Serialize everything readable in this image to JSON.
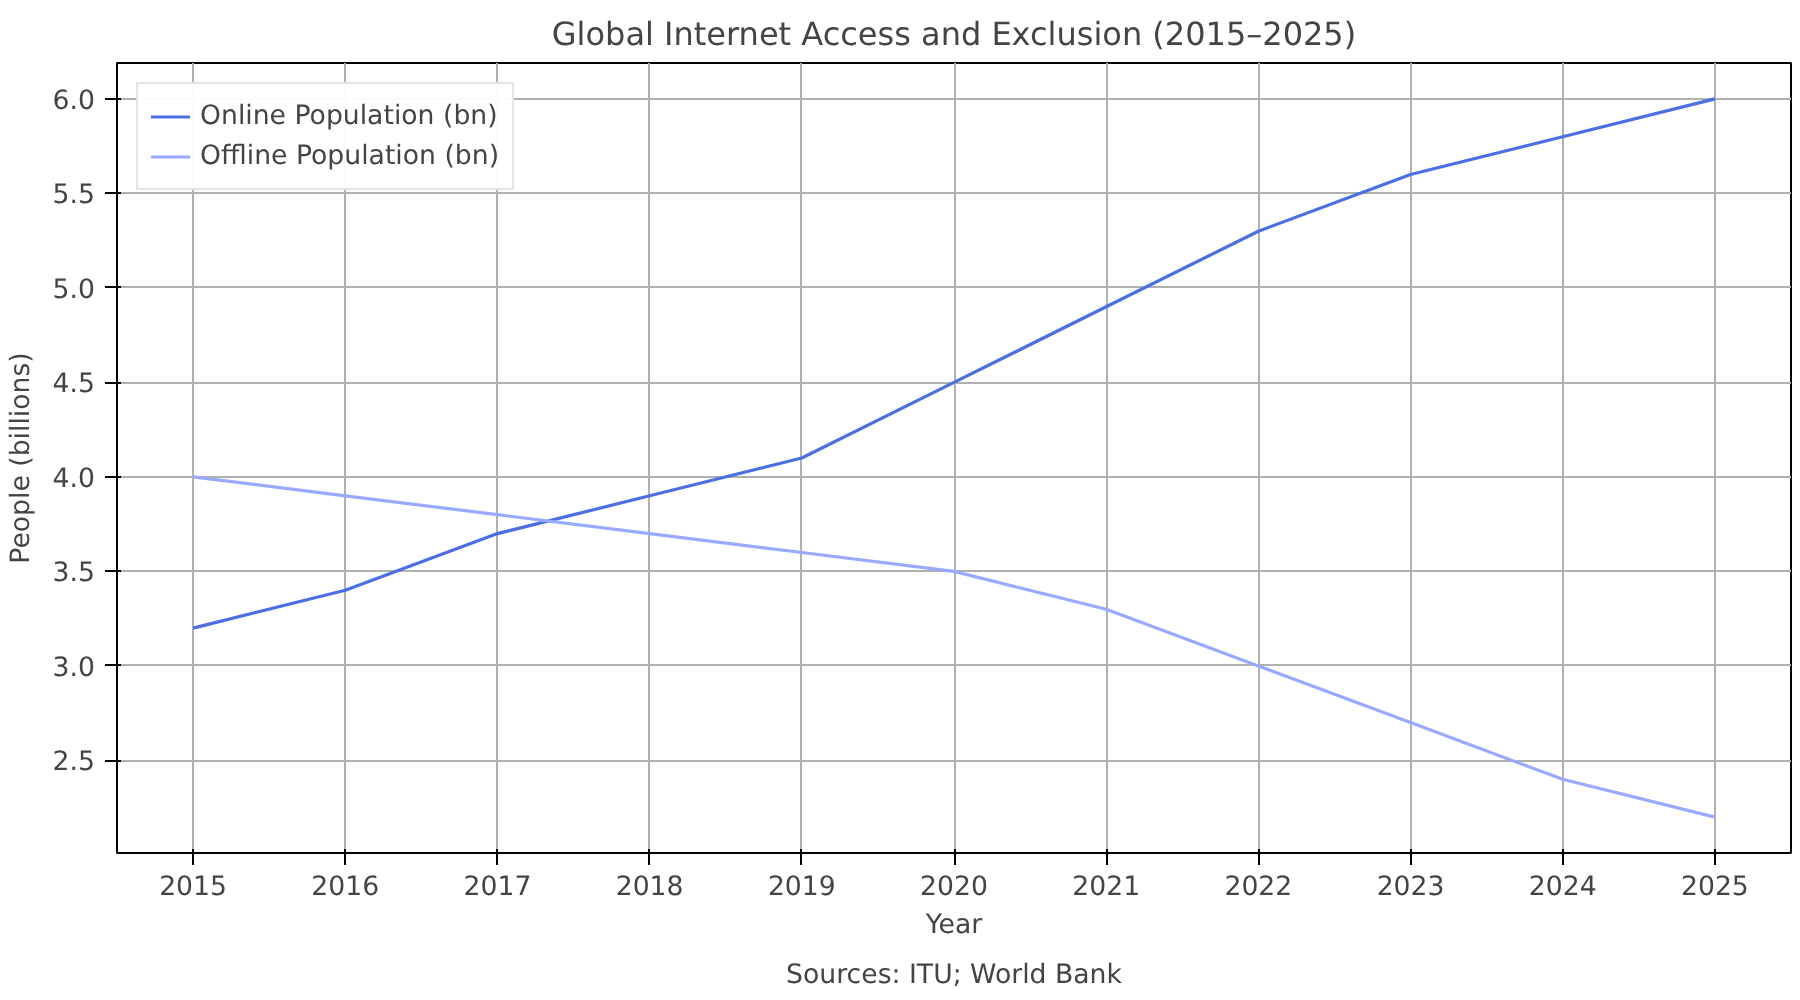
{
  "chart_data": {
    "type": "line",
    "title": "Global Internet Access and Exclusion (2015–2025)",
    "xlabel": "Year",
    "ylabel": "People (billions)",
    "annotations": [
      "Sources: ITU; World Bank"
    ],
    "x": [
      2015,
      2016,
      2017,
      2018,
      2019,
      2020,
      2021,
      2022,
      2023,
      2024,
      2025
    ],
    "series": [
      {
        "name": "Online Population (bn)",
        "color": "#4a6fe3",
        "values": [
          3.2,
          3.4,
          3.7,
          3.9,
          4.1,
          4.5,
          4.9,
          5.3,
          5.6,
          5.8,
          6.0
        ]
      },
      {
        "name": "Offline Population (bn)",
        "color": "#98aaff",
        "values": [
          4.0,
          3.9,
          3.8,
          3.7,
          3.6,
          3.5,
          3.3,
          3.0,
          2.7,
          2.4,
          2.2
        ]
      }
    ],
    "xlim": [
      2014.5,
      2025.5
    ],
    "xticks": [
      2015,
      2016,
      2017,
      2018,
      2019,
      2020,
      2021,
      2022,
      2023,
      2024,
      2025
    ],
    "ylim": [
      2.01,
      6.19
    ],
    "yticks": [
      {
        "value": 2.5,
        "label": "2.5"
      },
      {
        "value": 3.0,
        "label": "3.0"
      },
      {
        "value": 3.5,
        "label": "3.5"
      },
      {
        "value": 4.0,
        "label": "4.0"
      },
      {
        "value": 4.5,
        "label": "4.5"
      },
      {
        "value": 5.0,
        "label": "5.0"
      },
      {
        "value": 5.5,
        "label": "5.5"
      },
      {
        "value": 6.0,
        "label": "6.0"
      }
    ],
    "grid": true,
    "legend": "top left",
    "marker": "none",
    "line_style": "solid"
  }
}
